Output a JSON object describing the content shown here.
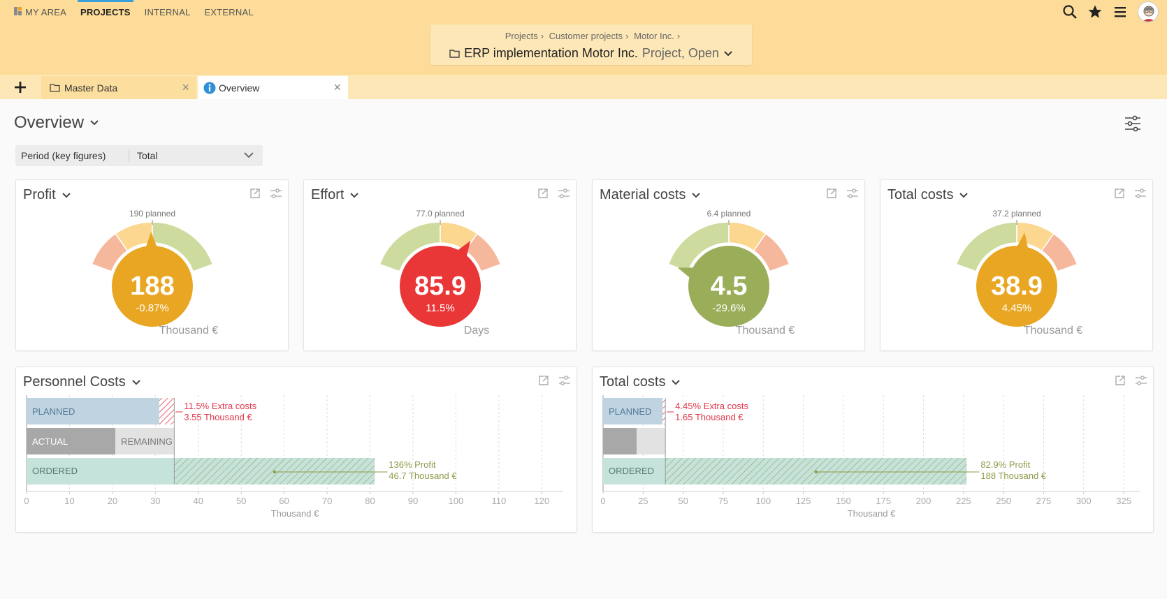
{
  "nav": {
    "items": [
      "MY AREA",
      "PROJECTS",
      "INTERNAL",
      "EXTERNAL"
    ],
    "active_index": 1
  },
  "breadcrumb": [
    "Projects",
    "Customer projects",
    "Motor Inc."
  ],
  "object": {
    "title": "ERP implementation Motor Inc.",
    "subtitle": "Project, Open"
  },
  "tabs": [
    {
      "label": "Master Data",
      "icon": "folder-icon"
    },
    {
      "label": "Overview",
      "icon": "info-icon",
      "active": true
    }
  ],
  "page": {
    "title": "Overview"
  },
  "period": {
    "label": "Period (key figures)",
    "value": "Total"
  },
  "colors": {
    "orange": "#e9a623",
    "red": "#e93636",
    "green": "#9aae5a",
    "arc_green": "#cddc9e",
    "arc_yellow": "#fbd790",
    "arc_red": "#f6b89c",
    "planned_bar": "#bfd3e0",
    "actual_bar": "#a8a8a8",
    "remaining_bar": "#e2e2e2",
    "ordered_bar": "#c5e3db",
    "extra_red": "#e2364a",
    "profit_green": "#8e9a48"
  },
  "kpis": [
    {
      "title": "Profit",
      "planned": "190 planned",
      "value": "188",
      "delta": "-0.87%",
      "unit": "Thousand €",
      "status": "orange",
      "arcs": [
        "red",
        "yellow",
        "green"
      ],
      "needle_fraction": 0.49
    },
    {
      "title": "Effort",
      "planned": "77.0 planned",
      "value": "85.9",
      "delta": "11.5%",
      "unit": "Days",
      "status": "red",
      "arcs": [
        "green",
        "yellow",
        "red"
      ],
      "needle_fraction": 0.74
    },
    {
      "title": "Material costs",
      "planned": "6.4 planned",
      "value": "4.5",
      "delta": "-29.6%",
      "unit": "Thousand €",
      "status": "green",
      "arcs": [
        "green",
        "yellow",
        "red"
      ],
      "needle_fraction": 0.0
    },
    {
      "title": "Total costs",
      "planned": "37.2 planned",
      "value": "38.9",
      "delta": "4.45%",
      "unit": "Thousand €",
      "status": "orange",
      "arcs": [
        "green",
        "yellow",
        "red"
      ],
      "needle_fraction": 0.56
    }
  ],
  "bar_cards": [
    {
      "title": "Personnel Costs",
      "labels": {
        "planned": "PLANNED",
        "actual": "ACTUAL",
        "remaining": "REMAINING",
        "ordered": "ORDERED"
      },
      "extra_text": [
        "11.5% Extra costs",
        "3.55 Thousand €"
      ],
      "profit_text": [
        "136% Profit",
        "46.7 Thousand €"
      ]
    },
    {
      "title": "Total costs",
      "labels": {
        "planned": "PLANNED",
        "actual": "",
        "remaining": "",
        "ordered": "ORDERED"
      },
      "extra_text": [
        "4.45% Extra costs",
        "1.65 Thousand €"
      ],
      "profit_text": [
        "82.9% Profit",
        "188 Thousand €"
      ]
    }
  ],
  "chart_data": [
    {
      "type": "bar",
      "title": "Personnel Costs",
      "xlabel": "Thousand €",
      "xlim": [
        0,
        125
      ],
      "xticks": [
        0,
        10,
        20,
        30,
        40,
        50,
        60,
        70,
        80,
        90,
        100,
        110,
        120
      ],
      "planned": 30.9,
      "actual": 20.7,
      "remaining": 13.7,
      "estimate": 34.4,
      "ordered": 81.1
    },
    {
      "type": "bar",
      "title": "Total costs",
      "xlabel": "Thousand €",
      "xlim": [
        0,
        335
      ],
      "xticks": [
        0,
        25,
        50,
        75,
        100,
        125,
        150,
        175,
        200,
        225,
        250,
        275,
        300,
        325
      ],
      "planned": 37.2,
      "actual": 21.0,
      "remaining": 17.9,
      "estimate": 38.9,
      "ordered": 227
    }
  ]
}
